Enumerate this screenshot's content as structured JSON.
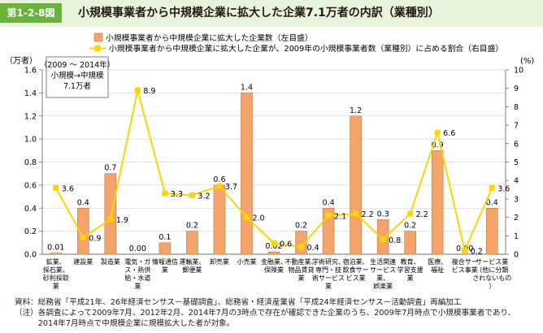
{
  "header": {
    "figure_number": "第1-2-8図",
    "title": "小規模事業者から中規模企業に拡大した企業7.1万者の内訳（業種別）"
  },
  "colors": {
    "header_bg": "#e8f3dc",
    "badge_bg": "#6ab33b",
    "bar": "#f4a36a",
    "bar_stroke": "#c87a3e",
    "line": "#fbd600",
    "axis": "#6e6e6e",
    "grid": "#c8c8c8"
  },
  "chart_data": {
    "type": "bar",
    "title": "",
    "categories": [
      [
        "鉱業、",
        "採石業、",
        "砂利採取",
        "業"
      ],
      [
        "建設業"
      ],
      [
        "製造業"
      ],
      [
        "電気・ガ",
        "ス・熱供",
        "給・水道",
        "業"
      ],
      [
        "情報通信",
        "業"
      ],
      [
        "運輸業、",
        "郵便業"
      ],
      [
        "卸売業"
      ],
      [
        "小売業"
      ],
      [
        "金融業、",
        "保険業"
      ],
      [
        "不動産業、",
        "物品賃貸",
        "業"
      ],
      [
        "学術研究、",
        "専門・技",
        "術サービス",
        "業"
      ],
      [
        "宿泊業、",
        "飲食サー",
        "ビス業"
      ],
      [
        "生活関連",
        "サービス",
        "業、",
        "娯楽業"
      ],
      [
        "教育、",
        "学習支援",
        "業"
      ],
      [
        "医療、",
        "福祉"
      ],
      [
        "複合サー",
        "ビス事業"
      ],
      [
        "サービス業",
        "（他に分類",
        "されないもの",
        "）"
      ]
    ],
    "series": [
      {
        "name": "小規模事業者から中規模企業に拡大した企業数（左目盛）",
        "type": "bar",
        "axis": "left",
        "values": [
          0.01,
          0.4,
          0.7,
          0.0,
          0.1,
          0.2,
          0.6,
          1.4,
          0.02,
          0.2,
          0.4,
          1.2,
          0.3,
          0.2,
          0.9,
          0.0,
          0.4
        ],
        "labels": [
          "0.01",
          "0.4",
          "0.7",
          "0.00",
          "0.1",
          "0.2",
          "0.6",
          "1.4",
          "0.02",
          "0.2",
          "0.4",
          "1.2",
          "0.3",
          "0.2",
          "0.9",
          "0.00",
          "0.4"
        ]
      },
      {
        "name": "小規模事業者から中規模企業に拡大した企業が、2009年の小規模事業者数（業種別）に占める割合（右目盛）",
        "type": "line",
        "axis": "right",
        "values": [
          3.6,
          0.9,
          1.9,
          8.9,
          3.3,
          3.2,
          3.7,
          2.0,
          0.6,
          0.4,
          2.1,
          2.2,
          0.8,
          2.2,
          6.6,
          0.2,
          3.6
        ],
        "labels": [
          "3.6",
          "0.9",
          "1.9",
          "8.9",
          "3.3",
          "3.2",
          "3.7",
          "2.0",
          "0.6",
          "0.4",
          "2.1",
          "2.2",
          "0.8",
          "2.2",
          "6.6",
          "0.2",
          "3.6"
        ]
      }
    ],
    "left_axis": {
      "unit": "（万者）",
      "ylim": [
        0,
        1.6
      ],
      "ticks": [
        "0.0",
        "0.2",
        "0.4",
        "0.6",
        "0.8",
        "1.0",
        "1.2",
        "1.4",
        "1.6"
      ]
    },
    "right_axis": {
      "unit": "(%)",
      "ylim": [
        0,
        10
      ],
      "ticks": [
        "0",
        "1",
        "2",
        "3",
        "4",
        "5",
        "6",
        "7",
        "8",
        "9",
        "10"
      ]
    },
    "grid": true,
    "legend_position": "top",
    "annotation": [
      "（2009 〜 2014年）",
      "小規模→中規模",
      "7.1万者"
    ]
  },
  "notes": [
    "資料：総務省「平成21年、26年経済センサス－基礎調査」、総務省・経済産業省「平成24年経済センサス－活動調査」再編加工",
    "（注）各調査によって2009年7月、2012年2月、2014年7月の3時点で存在が確認できた企業のうち、2009年7月時点で小規模事業者であり、",
    "　　　2014年7月時点で中規模企業に規模拡大した者が対象。"
  ]
}
